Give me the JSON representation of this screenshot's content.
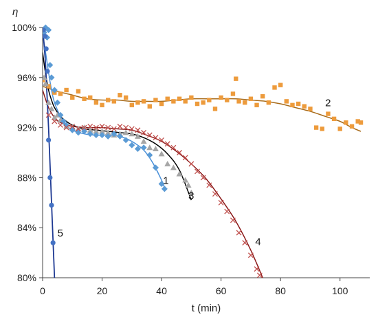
{
  "chart_data": {
    "type": "scatter",
    "title": "",
    "xlabel": "t (min)",
    "ylabel": "η",
    "xlim": [
      0,
      110
    ],
    "ylim": [
      80,
      100
    ],
    "xticks": [
      0,
      20,
      40,
      60,
      80,
      100
    ],
    "yticks": [
      80,
      84,
      88,
      92,
      96,
      100
    ],
    "x_tick_labels": [
      "0",
      "20",
      "40",
      "60",
      "80",
      "100"
    ],
    "y_tick_labels": [
      "80%",
      "84%",
      "88%",
      "92%",
      "96%",
      "100%"
    ],
    "grid": false,
    "legend": "none",
    "series": [
      {
        "label": "1",
        "label_at": [
          40.5,
          87.5
        ],
        "marker": "diamond",
        "color": "#5b9bd5",
        "fit_color": "#4a90d9",
        "points": [
          [
            0.5,
            99.6
          ],
          [
            1,
            100
          ],
          [
            1.5,
            99.2
          ],
          [
            2,
            99.8
          ],
          [
            2.5,
            97
          ],
          [
            3,
            96
          ],
          [
            4,
            95
          ],
          [
            5,
            94
          ],
          [
            6,
            93
          ],
          [
            7,
            92.5
          ],
          [
            8,
            92.2
          ],
          [
            10,
            91.8
          ],
          [
            12,
            91.6
          ],
          [
            14,
            91.7
          ],
          [
            16,
            91.5
          ],
          [
            18,
            91.4
          ],
          [
            20,
            91.4
          ],
          [
            22,
            91.3
          ],
          [
            24,
            91.5
          ],
          [
            26,
            91.3
          ],
          [
            28,
            91
          ],
          [
            30,
            90.6
          ],
          [
            32,
            90.3
          ],
          [
            34,
            90.4
          ],
          [
            36,
            89.8
          ],
          [
            38,
            88.8
          ],
          [
            40,
            87.5
          ],
          [
            41,
            87.1
          ]
        ],
        "fit": [
          [
            0,
            99.5
          ],
          [
            1,
            98
          ],
          [
            2,
            96.4
          ],
          [
            3,
            95
          ],
          [
            4,
            94
          ],
          [
            6,
            92.9
          ],
          [
            8,
            92.2
          ],
          [
            10,
            91.8
          ],
          [
            14,
            91.5
          ],
          [
            18,
            91.4
          ],
          [
            22,
            91.4
          ],
          [
            26,
            91.3
          ],
          [
            30,
            90.9
          ],
          [
            34,
            90.2
          ],
          [
            37,
            89.2
          ],
          [
            40,
            87.8
          ],
          [
            41,
            87.2
          ]
        ]
      },
      {
        "label": "2",
        "label_at": [
          95,
          93.7
        ],
        "marker": "square",
        "color": "#ed9b3c",
        "fit_color": "#a86b1a",
        "points": [
          [
            0,
            95.8
          ],
          [
            2,
            95.3
          ],
          [
            4,
            94.8
          ],
          [
            6,
            94.7
          ],
          [
            8,
            95
          ],
          [
            10,
            94.4
          ],
          [
            12,
            94.9
          ],
          [
            14,
            94.3
          ],
          [
            16,
            94.4
          ],
          [
            18,
            94
          ],
          [
            20,
            93.8
          ],
          [
            22,
            94.2
          ],
          [
            24,
            94.1
          ],
          [
            26,
            94.6
          ],
          [
            28,
            94.4
          ],
          [
            30,
            93.8
          ],
          [
            32,
            94
          ],
          [
            34,
            94.1
          ],
          [
            36,
            93.7
          ],
          [
            38,
            94.2
          ],
          [
            40,
            93.9
          ],
          [
            42,
            94.3
          ],
          [
            44,
            94.1
          ],
          [
            46,
            94.3
          ],
          [
            48,
            94.1
          ],
          [
            50,
            94.4
          ],
          [
            52,
            93.9
          ],
          [
            54,
            94
          ],
          [
            56,
            94.2
          ],
          [
            58,
            93.5
          ],
          [
            60,
            94.4
          ],
          [
            62,
            94.2
          ],
          [
            64,
            94.7
          ],
          [
            65,
            95.9
          ],
          [
            66,
            94.1
          ],
          [
            68,
            94
          ],
          [
            70,
            94.3
          ],
          [
            72,
            93.8
          ],
          [
            74,
            94.5
          ],
          [
            76,
            94
          ],
          [
            78,
            95.2
          ],
          [
            80,
            95.4
          ],
          [
            82,
            94.1
          ],
          [
            84,
            93.8
          ],
          [
            86,
            93.9
          ],
          [
            88,
            93.7
          ],
          [
            90,
            93.5
          ],
          [
            92,
            92
          ],
          [
            94,
            91.9
          ],
          [
            96,
            93.1
          ],
          [
            98,
            92.7
          ],
          [
            100,
            91.9
          ],
          [
            102,
            92.4
          ],
          [
            104,
            92.1
          ],
          [
            106,
            92.5
          ],
          [
            107,
            92.4
          ]
        ],
        "fit": [
          [
            0,
            95.3
          ],
          [
            5,
            94.9
          ],
          [
            10,
            94.6
          ],
          [
            15,
            94.3
          ],
          [
            20,
            94.2
          ],
          [
            25,
            94.2
          ],
          [
            30,
            94.1
          ],
          [
            35,
            94.1
          ],
          [
            40,
            94.1
          ],
          [
            45,
            94.2
          ],
          [
            50,
            94.3
          ],
          [
            55,
            94.3
          ],
          [
            60,
            94.3
          ],
          [
            65,
            94.3
          ],
          [
            70,
            94.2
          ],
          [
            75,
            94.1
          ],
          [
            80,
            93.9
          ],
          [
            85,
            93.6
          ],
          [
            90,
            93.3
          ],
          [
            95,
            92.9
          ],
          [
            100,
            92.5
          ],
          [
            104,
            92
          ],
          [
            107,
            91.7
          ]
        ]
      },
      {
        "label": "3",
        "label_at": [
          49,
          86.3
        ],
        "marker": "triangle",
        "color": "#a6a6a6",
        "fit_color": "#000000",
        "points": [
          [
            0.5,
            96
          ],
          [
            1,
            95.5
          ],
          [
            2,
            94
          ],
          [
            3,
            93.5
          ],
          [
            4,
            92.8
          ],
          [
            5,
            93
          ],
          [
            6,
            92.6
          ],
          [
            8,
            92.1
          ],
          [
            10,
            92
          ],
          [
            12,
            91.9
          ],
          [
            14,
            92
          ],
          [
            16,
            91.8
          ],
          [
            18,
            91.7
          ],
          [
            20,
            91.7
          ],
          [
            22,
            91.6
          ],
          [
            24,
            91.4
          ],
          [
            26,
            91.5
          ],
          [
            28,
            91.6
          ],
          [
            30,
            91.5
          ],
          [
            32,
            91.3
          ],
          [
            34,
            90.9
          ],
          [
            36,
            90.4
          ],
          [
            38,
            90.3
          ],
          [
            40,
            89.9
          ],
          [
            42,
            89.1
          ],
          [
            44,
            88.8
          ],
          [
            46,
            88.3
          ],
          [
            48,
            87.8
          ],
          [
            49,
            87.4
          ],
          [
            50,
            86.8
          ]
        ],
        "fit": [
          [
            0,
            98
          ],
          [
            1,
            96.3
          ],
          [
            2,
            95
          ],
          [
            3,
            94.2
          ],
          [
            4,
            93.6
          ],
          [
            6,
            92.9
          ],
          [
            8,
            92.5
          ],
          [
            10,
            92.2
          ],
          [
            14,
            91.9
          ],
          [
            18,
            91.8
          ],
          [
            22,
            91.7
          ],
          [
            26,
            91.6
          ],
          [
            30,
            91.5
          ],
          [
            34,
            91.2
          ],
          [
            38,
            90.7
          ],
          [
            42,
            89.9
          ],
          [
            46,
            88.6
          ],
          [
            50,
            86.2
          ]
        ]
      },
      {
        "label": "4",
        "label_at": [
          71.5,
          82.6
        ],
        "marker": "x",
        "color": "#c0504d",
        "fit_color": "#8b1a1a",
        "points": [
          [
            2,
            93
          ],
          [
            4,
            92.5
          ],
          [
            6,
            92.2
          ],
          [
            8,
            92
          ],
          [
            10,
            92.1
          ],
          [
            12,
            91.9
          ],
          [
            14,
            92
          ],
          [
            16,
            92.1
          ],
          [
            18,
            92
          ],
          [
            20,
            92.1
          ],
          [
            22,
            92
          ],
          [
            24,
            91.9
          ],
          [
            26,
            92.1
          ],
          [
            28,
            92
          ],
          [
            30,
            91.9
          ],
          [
            32,
            91.8
          ],
          [
            34,
            91.6
          ],
          [
            36,
            91.4
          ],
          [
            38,
            91.2
          ],
          [
            40,
            91
          ],
          [
            42,
            90.7
          ],
          [
            44,
            90.4
          ],
          [
            46,
            90
          ],
          [
            48,
            89.6
          ],
          [
            50,
            89.1
          ],
          [
            52,
            88.5
          ],
          [
            54,
            88
          ],
          [
            56,
            87.4
          ],
          [
            58,
            86.7
          ],
          [
            60,
            86
          ],
          [
            62,
            85.3
          ],
          [
            64,
            84.6
          ],
          [
            66,
            83.6
          ],
          [
            68,
            82.8
          ],
          [
            70,
            81.8
          ],
          [
            72,
            80.7
          ],
          [
            73,
            80.2
          ]
        ],
        "fit": [
          [
            0,
            95
          ],
          [
            2,
            93.6
          ],
          [
            4,
            92.8
          ],
          [
            6,
            92.4
          ],
          [
            10,
            92.1
          ],
          [
            15,
            92
          ],
          [
            20,
            92
          ],
          [
            25,
            91.9
          ],
          [
            30,
            91.8
          ],
          [
            35,
            91.4
          ],
          [
            40,
            90.9
          ],
          [
            45,
            90.1
          ],
          [
            50,
            89.1
          ],
          [
            55,
            87.9
          ],
          [
            60,
            86.3
          ],
          [
            65,
            84.5
          ],
          [
            70,
            82.2
          ],
          [
            74,
            80
          ]
        ]
      },
      {
        "label": "5",
        "label_at": [
          5,
          83.3
        ],
        "marker": "circle",
        "color": "#4472c4",
        "fit_color": "#1f3a93",
        "points": [
          [
            0.3,
            99.8
          ],
          [
            0.8,
            99.3
          ],
          [
            1.2,
            98.3
          ],
          [
            1.6,
            96.5
          ],
          [
            2,
            91
          ],
          [
            2.5,
            88
          ],
          [
            3,
            85.8
          ],
          [
            3.5,
            82.8
          ]
        ],
        "fit": [
          [
            0,
            100
          ],
          [
            1,
            97
          ],
          [
            2,
            92
          ],
          [
            3,
            86
          ],
          [
            4,
            80
          ]
        ]
      }
    ]
  }
}
